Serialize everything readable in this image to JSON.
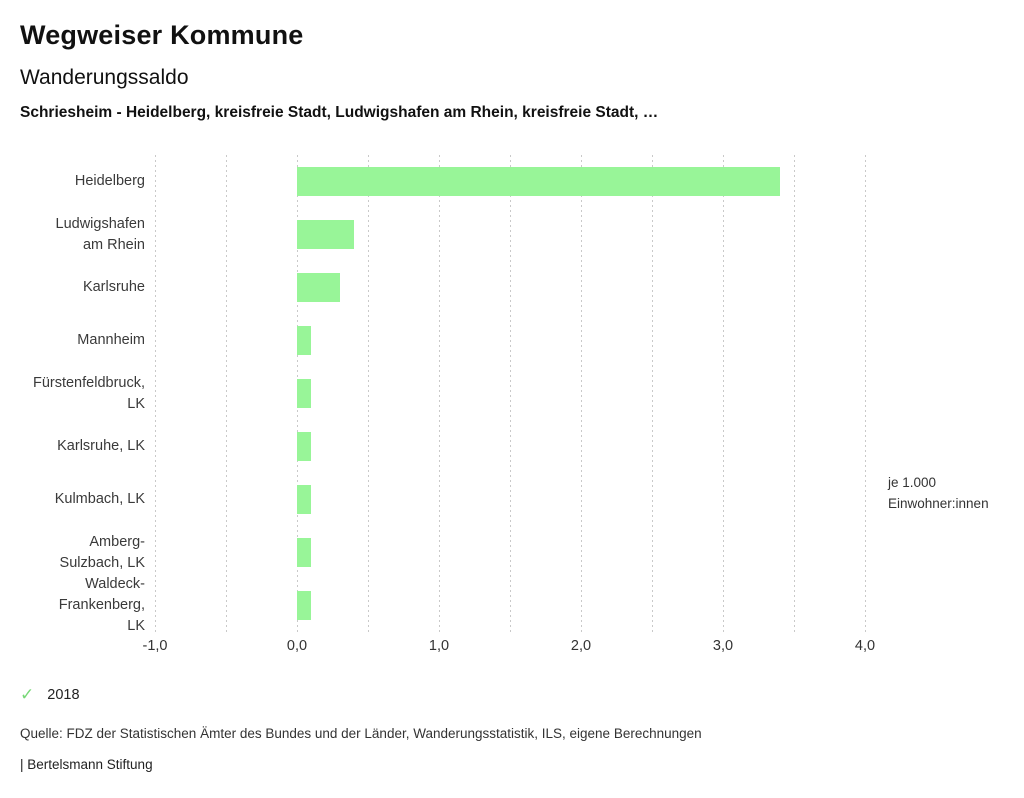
{
  "header": {
    "title": "Wegweiser Kommune",
    "subtitle": "Wanderungssaldo",
    "series_line": "Schriesheim - Heidelberg, kreisfreie Stadt, Ludwigshafen am Rhein, kreisfreie Stadt, …"
  },
  "chart_data": {
    "type": "bar",
    "orientation": "horizontal",
    "title": "Wanderungssaldo",
    "categories": [
      "Heidelberg",
      "Ludwigshafen am Rhein",
      "Karlsruhe",
      "Mannheim",
      "Fürstenfeldbruck, LK",
      "Karlsruhe, LK",
      "Kulmbach, LK",
      "Amberg-Sulzbach, LK",
      "Waldeck-Frankenberg, LK"
    ],
    "display_labels": [
      "Heidelberg",
      "Ludwigshafen\nam Rhein",
      "Karlsruhe",
      "Mannheim",
      "Fürstenfeldbruck,\nLK",
      "Karlsruhe, LK",
      "Kulmbach, LK",
      "Amberg-\nSulzbach, LK",
      "Waldeck-\nFrankenberg,\nLK"
    ],
    "values": [
      3.4,
      0.4,
      0.3,
      0.1,
      0.1,
      0.1,
      0.1,
      0.1,
      0.1
    ],
    "xlim": [
      -1.0,
      4.0
    ],
    "x_ticks": [
      -1.0,
      0.0,
      1.0,
      2.0,
      3.0,
      4.0
    ],
    "x_tick_labels": [
      "-1,0",
      "0,0",
      "1,0",
      "2,0",
      "3,0",
      "4,0"
    ],
    "gridline_step": 0.5,
    "grid": true,
    "xlabel": "je 1.000\nEinwohner:innen",
    "ylabel": "",
    "bar_color": "#98f598",
    "legend_position": "bottom-left",
    "legend": [
      {
        "label": "2018",
        "marker_glyph": "✓",
        "color": "#77d877"
      }
    ]
  },
  "footer": {
    "source": "Quelle: FDZ der Statistischen Ämter des Bundes und der Länder, Wanderungsstatistik, ILS, eigene Berechnungen",
    "branding": "| Bertelsmann Stiftung"
  }
}
